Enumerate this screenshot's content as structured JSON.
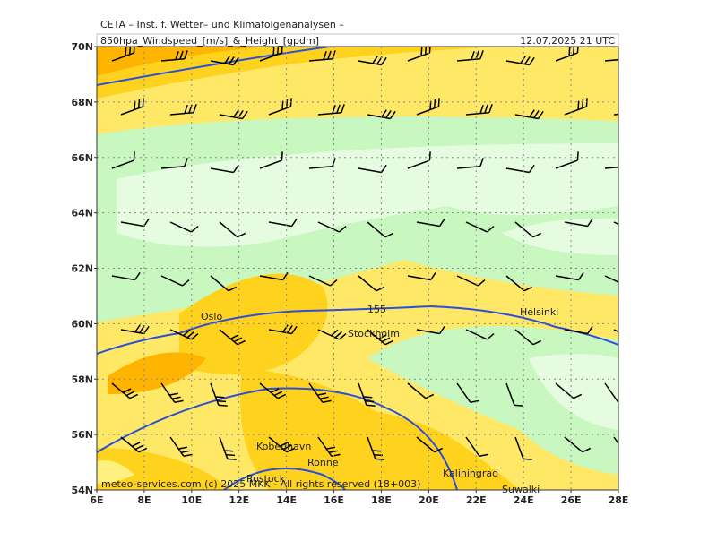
{
  "header": {
    "institute": "CETA – Inst. f. Wetter– und Klimafolgenanalysen –",
    "parameter": "850hpa_Windspeed_[m/s]_&_Height_[gpdm]",
    "datetime": "12.07.2025  21 UTC"
  },
  "map": {
    "lat_labels": [
      "70N",
      "68N",
      "66N",
      "64N",
      "62N",
      "60N",
      "58N",
      "56N",
      "54N"
    ],
    "lon_labels": [
      "6E",
      "8E",
      "10E",
      "12E",
      "14E",
      "16E",
      "18E",
      "20E",
      "22E",
      "24E",
      "26E",
      "28E"
    ],
    "places": [
      "Oslo",
      "Stockholm",
      "Helsinki",
      "Kobenhavn",
      "Ronne",
      "Rostock",
      "Kaliningrad",
      "Suwalki"
    ],
    "contour_label": "155"
  },
  "footer": "meteo-services.com (c) 2025 MKK - All rights reserved (18+003)"
}
